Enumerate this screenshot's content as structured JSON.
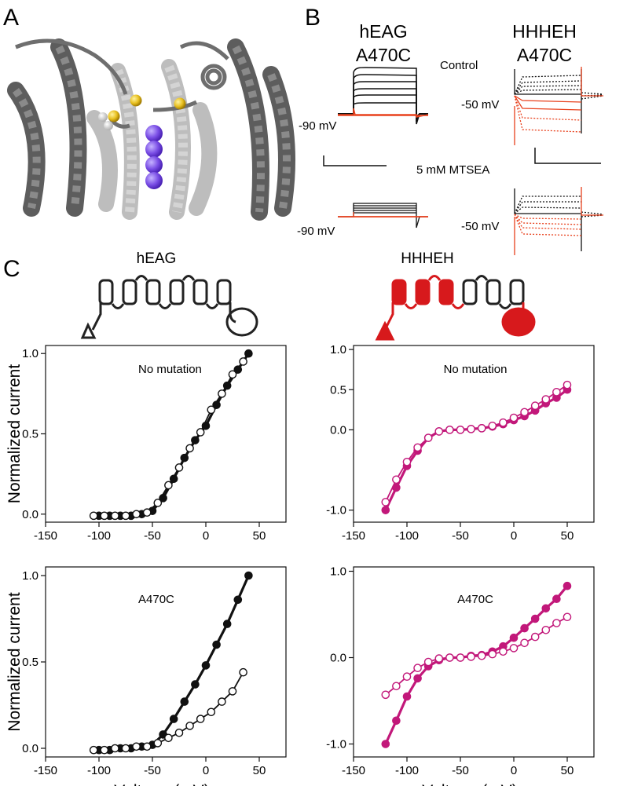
{
  "panel_labels": {
    "a": "A",
    "b": "B",
    "c": "C"
  },
  "panel_b": {
    "col1_title_line1": "hEAG",
    "col1_title_line2": "A470C",
    "col2_title_line1": "HHHEH",
    "col2_title_line2": "A470C",
    "control_label": "Control",
    "mtsea_label": "5 mM MTSEA",
    "hold_col1_top": "-90 mV",
    "hold_col2_top": "-50 mV",
    "hold_col1_bottom": "-90 mV",
    "hold_col2_bottom": "-50 mV"
  },
  "panel_c": {
    "col1_construct": "hEAG",
    "col2_construct": "HHHEH"
  },
  "colors": {
    "hEAG": "#111111",
    "HHHEH": "#c2187a",
    "schematic_red": "#d7191c",
    "trace_red": "#e8401c",
    "sulfur": "#e8c020",
    "pore_ion": "#7b4fe6",
    "protein_dark": "#5a5a5a",
    "protein_light": "#b8b8b8"
  },
  "chart_data": [
    {
      "type": "line",
      "construct": "hEAG",
      "annotation": "No mutation",
      "xlabel": "",
      "ylabel": "Normalized current",
      "xlim": [
        -150,
        75
      ],
      "ylim": [
        -0.05,
        1.05
      ],
      "xticks": [
        -150,
        -100,
        -50,
        0,
        50
      ],
      "yticks": [
        0.0,
        0.5,
        1.0
      ],
      "ytick_labels": [
        "0.0",
        "0.5",
        "1.0"
      ],
      "series": [
        {
          "filled": true,
          "x": [
            -100,
            -90,
            -80,
            -70,
            -60,
            -50,
            -40,
            -30,
            -20,
            -10,
            0,
            10,
            20,
            30,
            40
          ],
          "y": [
            -0.01,
            -0.01,
            -0.01,
            -0.01,
            0.0,
            0.02,
            0.1,
            0.22,
            0.35,
            0.46,
            0.55,
            0.68,
            0.8,
            0.9,
            1.0
          ]
        },
        {
          "filled": false,
          "x": [
            -105,
            -95,
            -85,
            -75,
            -65,
            -55,
            -45,
            -35,
            -25,
            -15,
            -5,
            5,
            15,
            25,
            35
          ],
          "y": [
            -0.01,
            -0.01,
            -0.01,
            -0.01,
            0.0,
            0.01,
            0.07,
            0.18,
            0.29,
            0.41,
            0.51,
            0.65,
            0.75,
            0.87,
            0.95
          ]
        }
      ]
    },
    {
      "type": "line",
      "construct": "HHHEH",
      "annotation": "No mutation",
      "xlabel": "",
      "ylabel": "",
      "xlim": [
        -150,
        75
      ],
      "ylim": [
        -1.15,
        1.05
      ],
      "xticks": [
        -150,
        -100,
        -50,
        0,
        50
      ],
      "yticks": [
        -1.0,
        0.0,
        0.5,
        1.0
      ],
      "ytick_labels": [
        "-1.0",
        "0.0",
        "0.5",
        "1.0"
      ],
      "series": [
        {
          "filled": true,
          "x": [
            -120,
            -110,
            -100,
            -90,
            -80,
            -70,
            -60,
            -50,
            -40,
            -30,
            -20,
            -10,
            0,
            10,
            20,
            30,
            40,
            50
          ],
          "y": [
            -1.0,
            -0.72,
            -0.45,
            -0.26,
            -0.1,
            -0.02,
            0.0,
            0.0,
            0.01,
            0.02,
            0.04,
            0.07,
            0.12,
            0.17,
            0.24,
            0.33,
            0.4,
            0.5
          ]
        },
        {
          "filled": false,
          "x": [
            -120,
            -110,
            -100,
            -90,
            -80,
            -70,
            -60,
            -50,
            -40,
            -30,
            -20,
            -10,
            0,
            10,
            20,
            30,
            40,
            50
          ],
          "y": [
            -0.9,
            -0.62,
            -0.4,
            -0.22,
            -0.1,
            -0.02,
            0.0,
            0.0,
            0.01,
            0.02,
            0.05,
            0.09,
            0.15,
            0.22,
            0.3,
            0.38,
            0.47,
            0.56
          ]
        }
      ]
    },
    {
      "type": "line",
      "construct": "hEAG",
      "annotation": "A470C",
      "xlabel": "Voltage (mV)",
      "ylabel": "Normalized current",
      "xlim": [
        -150,
        75
      ],
      "ylim": [
        -0.05,
        1.05
      ],
      "xticks": [
        -150,
        -100,
        -50,
        0,
        50
      ],
      "yticks": [
        0.0,
        0.5,
        1.0
      ],
      "ytick_labels": [
        "0.0",
        "0.5",
        "1.0"
      ],
      "series": [
        {
          "filled": true,
          "x": [
            -100,
            -90,
            -80,
            -70,
            -60,
            -50,
            -40,
            -30,
            -20,
            -10,
            0,
            10,
            20,
            30,
            40
          ],
          "y": [
            -0.01,
            -0.01,
            0.0,
            0.0,
            0.01,
            0.02,
            0.08,
            0.17,
            0.27,
            0.37,
            0.48,
            0.6,
            0.72,
            0.86,
            1.0
          ]
        },
        {
          "filled": false,
          "x": [
            -105,
            -95,
            -85,
            -75,
            -65,
            -55,
            -45,
            -35,
            -25,
            -15,
            -5,
            5,
            15,
            25,
            35
          ],
          "y": [
            -0.01,
            -0.01,
            0.0,
            0.0,
            0.01,
            0.01,
            0.03,
            0.06,
            0.09,
            0.13,
            0.17,
            0.21,
            0.27,
            0.33,
            0.44
          ]
        }
      ]
    },
    {
      "type": "line",
      "construct": "HHHEH",
      "annotation": "A470C",
      "xlabel": "Voltage (mV)",
      "ylabel": "",
      "xlim": [
        -150,
        75
      ],
      "ylim": [
        -1.15,
        1.05
      ],
      "xticks": [
        -150,
        -100,
        -50,
        0,
        50
      ],
      "yticks": [
        -1.0,
        0.0,
        1.0
      ],
      "ytick_labels": [
        "-1.0",
        "0.0",
        "1.0"
      ],
      "series": [
        {
          "filled": true,
          "x": [
            -120,
            -110,
            -100,
            -90,
            -80,
            -70,
            -60,
            -50,
            -40,
            -30,
            -20,
            -10,
            0,
            10,
            20,
            30,
            40,
            50
          ],
          "y": [
            -1.0,
            -0.73,
            -0.45,
            -0.24,
            -0.1,
            -0.03,
            0.0,
            0.0,
            0.02,
            0.03,
            0.07,
            0.13,
            0.23,
            0.34,
            0.45,
            0.57,
            0.68,
            0.83
          ]
        },
        {
          "filled": false,
          "x": [
            -120,
            -110,
            -100,
            -90,
            -80,
            -70,
            -60,
            -50,
            -40,
            -30,
            -20,
            -10,
            0,
            10,
            20,
            30,
            40,
            50
          ],
          "y": [
            -0.43,
            -0.33,
            -0.22,
            -0.12,
            -0.05,
            -0.01,
            0.0,
            0.0,
            0.01,
            0.02,
            0.04,
            0.07,
            0.11,
            0.17,
            0.24,
            0.32,
            0.4,
            0.47
          ]
        }
      ]
    }
  ]
}
